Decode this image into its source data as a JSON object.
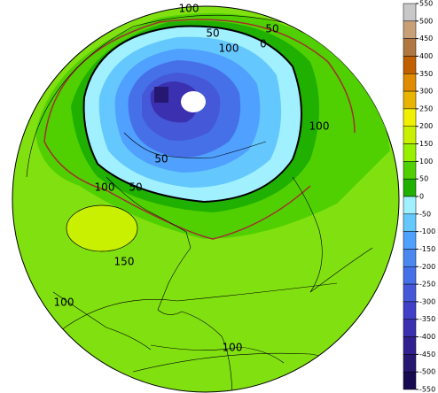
{
  "contour_labels": [
    "100",
    "50",
    "100",
    "50",
    "0",
    "100",
    "50",
    "100",
    "50",
    "150",
    "100",
    "100"
  ],
  "colorbar": {
    "ticks": [
      550,
      500,
      450,
      400,
      350,
      300,
      250,
      200,
      150,
      100,
      50,
      0,
      -50,
      -100,
      -150,
      -200,
      -250,
      -300,
      -350,
      -400,
      -450,
      -500,
      -550
    ],
    "colors": [
      "#c8c8c8",
      "#c8a078",
      "#b07840",
      "#c06000",
      "#e08c00",
      "#e8b400",
      "#f0f000",
      "#c8f000",
      "#96f000",
      "#50d000",
      "#20b000",
      "#a0f0ff",
      "#64c8ff",
      "#50a0ff",
      "#4a88f0",
      "#4670e8",
      "#4458d8",
      "#4040c8",
      "#3a30b0",
      "#302090",
      "#261870",
      "#180a50"
    ]
  }
}
